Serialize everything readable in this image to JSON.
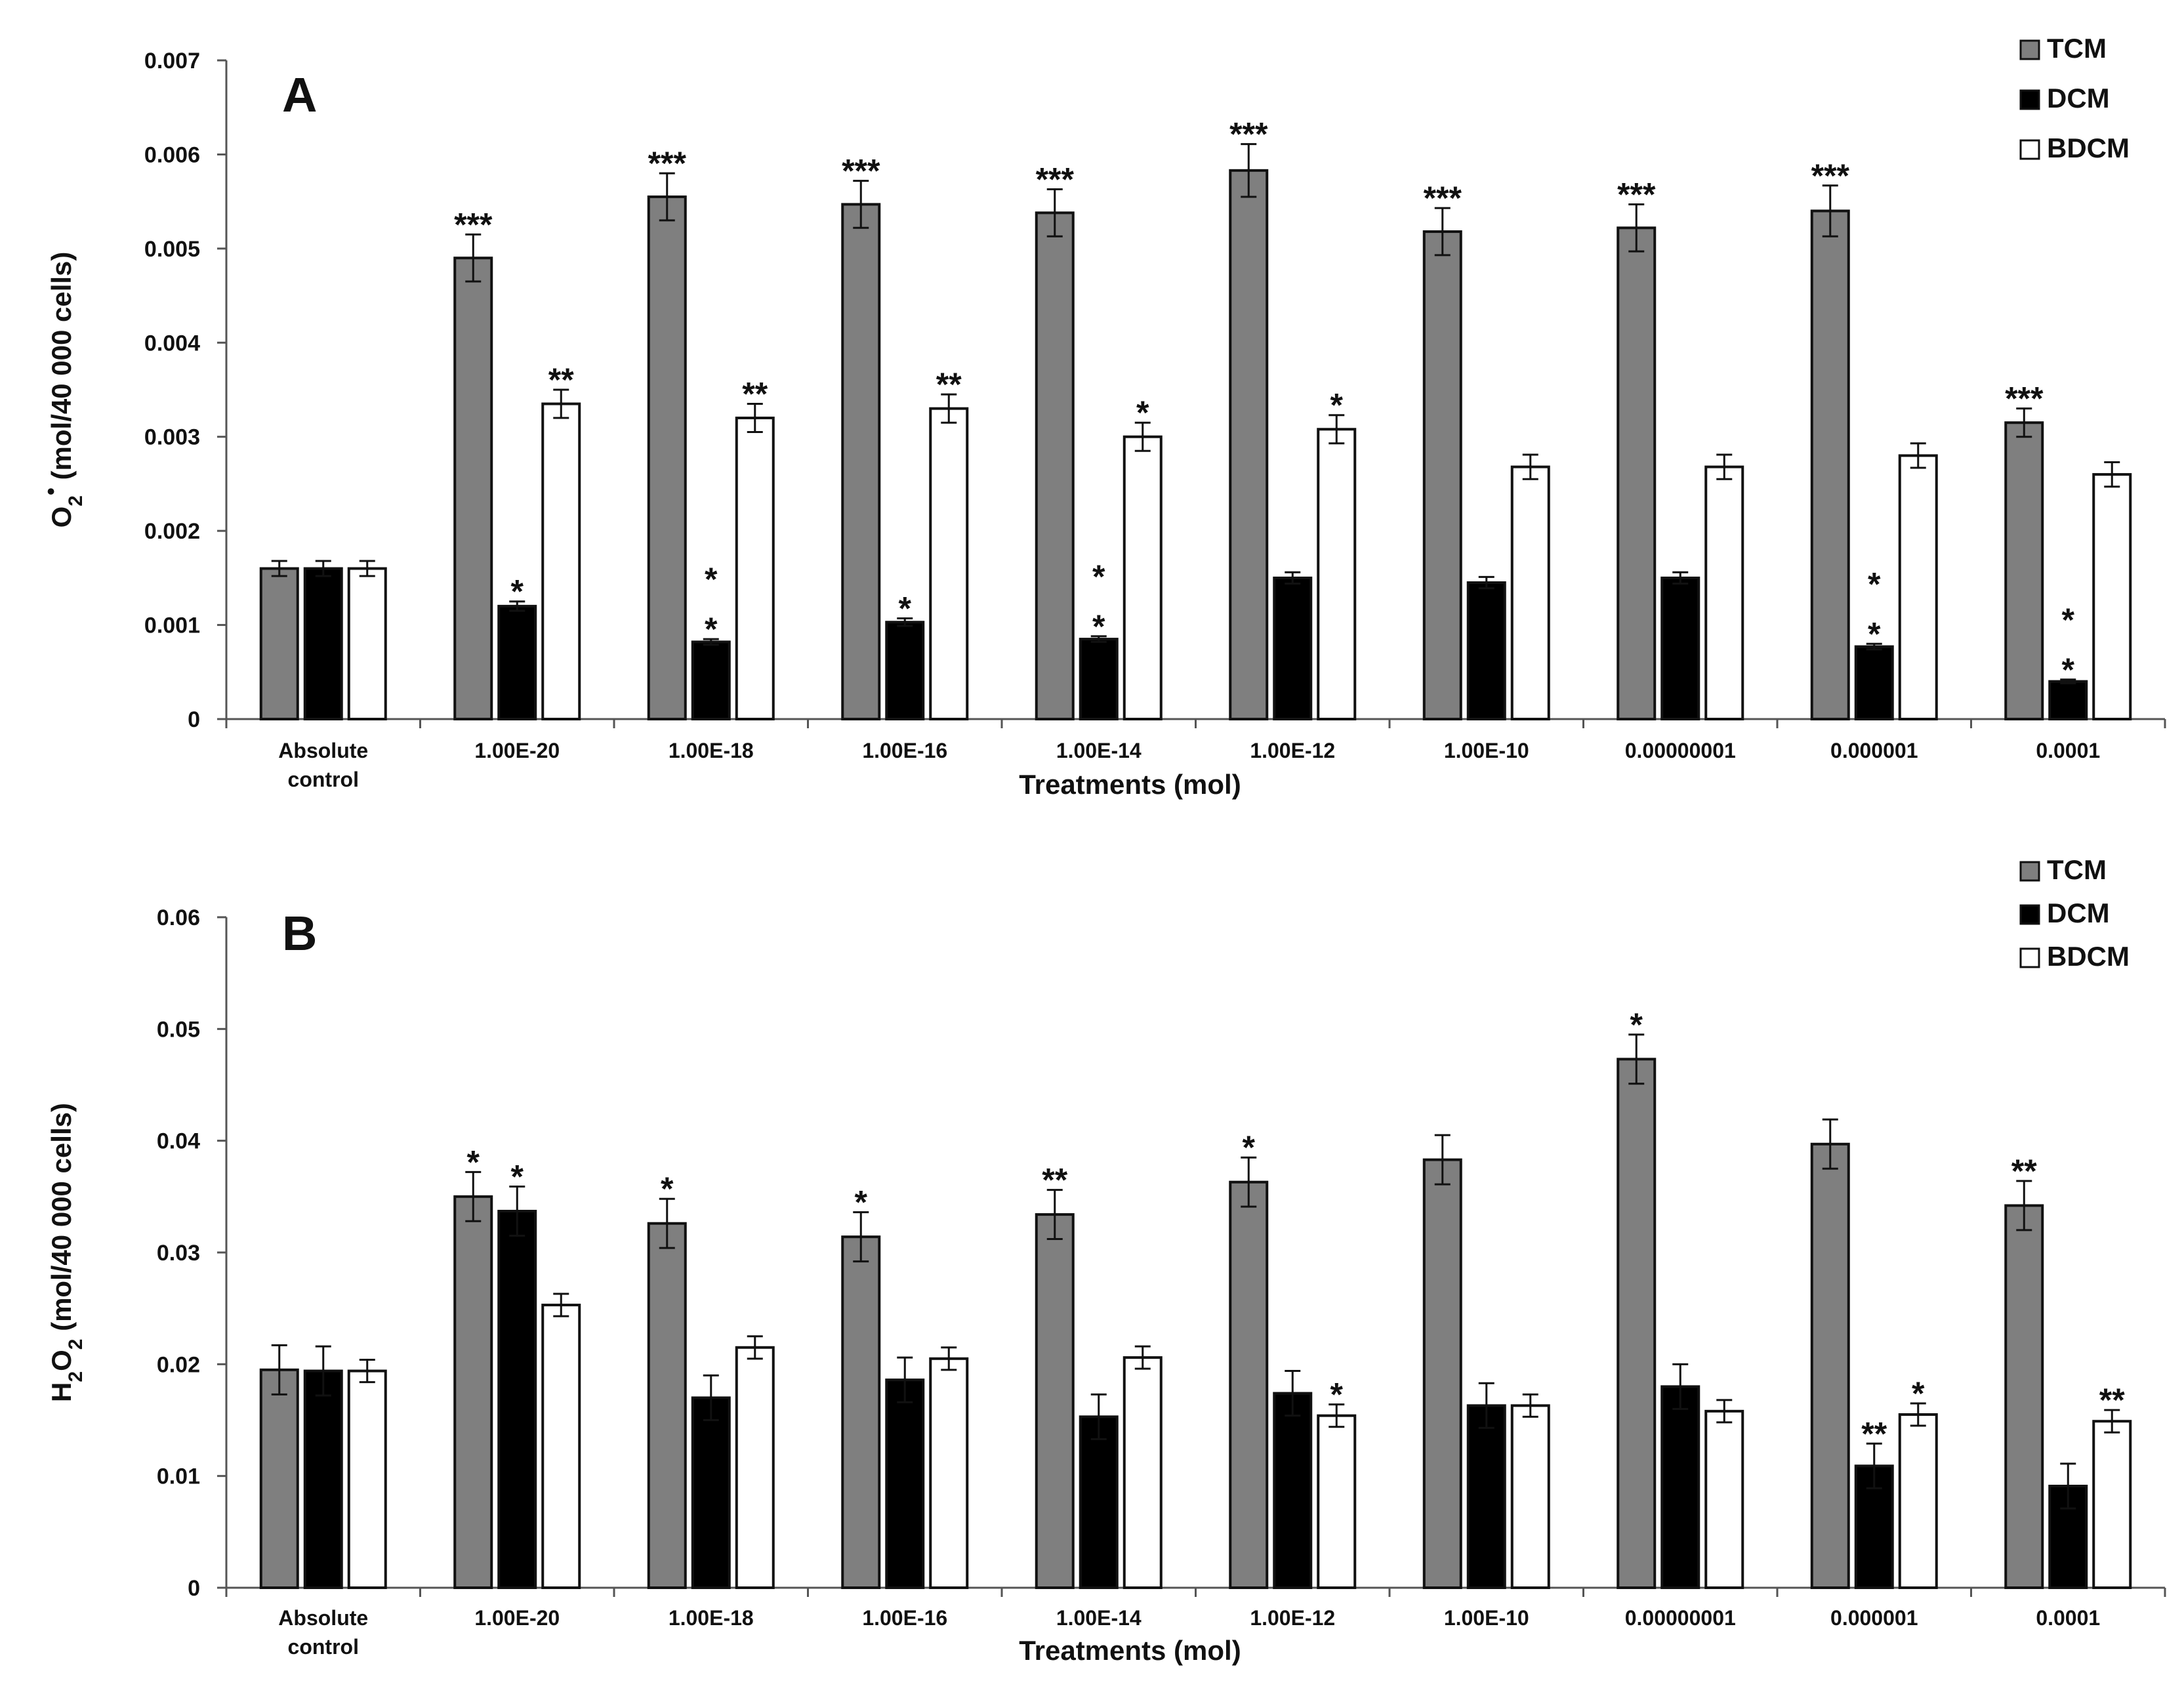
{
  "chart_data": [
    {
      "type": "bar",
      "panel": "A",
      "ylabel": "O2• (mol/40 000 cells)",
      "ylabel_parts": [
        "O",
        "2",
        "•",
        " (mol/40 000 cells)"
      ],
      "xlabel": "Treatments (mol)",
      "ylim": [
        0,
        0.007
      ],
      "yticks": [
        "0",
        "0.001",
        "0.002",
        "0.003",
        "0.004",
        "0.005",
        "0.006",
        "0.007"
      ],
      "categories": [
        [
          "Absolute",
          "control"
        ],
        [
          "1.00E-20"
        ],
        [
          "1.00E-18"
        ],
        [
          "1.00E-16"
        ],
        [
          "1.00E-14"
        ],
        [
          "1.00E-12"
        ],
        [
          "1.00E-10"
        ],
        [
          "0.00000001"
        ],
        [
          "0.000001"
        ],
        [
          "0.0001"
        ]
      ],
      "legend": [
        "TCM",
        "DCM",
        "BDCM"
      ],
      "series": [
        {
          "name": "TCM",
          "color": "#7f7f7f",
          "values": [
            0.0016,
            0.0049,
            0.00555,
            0.00547,
            0.00538,
            0.00583,
            0.00518,
            0.00522,
            0.0054,
            0.00315
          ],
          "errors": [
            8e-05,
            0.00025,
            0.00025,
            0.00025,
            0.00025,
            0.00028,
            0.00025,
            0.00025,
            0.00027,
            0.00015
          ],
          "sig": [
            "",
            "***",
            "***",
            "***",
            "***",
            "***",
            "***",
            "***",
            "***",
            "***"
          ]
        },
        {
          "name": "DCM",
          "color": "#000000",
          "values": [
            0.0016,
            0.0012,
            0.00082,
            0.00103,
            0.00085,
            0.0015,
            0.00145,
            0.0015,
            0.00077,
            0.0004
          ],
          "errors": [
            8e-05,
            5e-05,
            3e-05,
            4e-05,
            3e-05,
            6e-05,
            6e-05,
            6e-05,
            3e-05,
            2e-05
          ],
          "sig": [
            "",
            "*",
            "*\n*",
            "*",
            "*\n*",
            "",
            "",
            "",
            "*\n*",
            "*\n*"
          ]
        },
        {
          "name": "BDCM",
          "color": "#ffffff",
          "values": [
            0.0016,
            0.00335,
            0.0032,
            0.0033,
            0.003,
            0.00308,
            0.00268,
            0.00268,
            0.0028,
            0.0026
          ],
          "errors": [
            8e-05,
            0.00015,
            0.00015,
            0.00015,
            0.00015,
            0.00015,
            0.00013,
            0.00013,
            0.00013,
            0.00013
          ],
          "sig": [
            "",
            "**",
            "**",
            "**",
            "*",
            "*",
            "",
            "",
            "",
            ""
          ]
        }
      ]
    },
    {
      "type": "bar",
      "panel": "B",
      "ylabel": "H2O2 (mol/40 000 cells)",
      "ylabel_parts": [
        "H",
        "2",
        "O",
        "2",
        "  (mol/40 000 cells)"
      ],
      "xlabel": "Treatments (mol)",
      "ylim": [
        0,
        0.06
      ],
      "yticks": [
        "0",
        "0.01",
        "0.02",
        "0.03",
        "0.04",
        "0.05",
        "0.06"
      ],
      "categories": [
        [
          "Absolute",
          "control"
        ],
        [
          "1.00E-20"
        ],
        [
          "1.00E-18"
        ],
        [
          "1.00E-16"
        ],
        [
          "1.00E-14"
        ],
        [
          "1.00E-12"
        ],
        [
          "1.00E-10"
        ],
        [
          "0.00000001"
        ],
        [
          "0.000001"
        ],
        [
          "0.0001"
        ]
      ],
      "legend": [
        "TCM",
        "DCM",
        "BDCM"
      ],
      "series": [
        {
          "name": "TCM",
          "color": "#7f7f7f",
          "values": [
            0.0195,
            0.035,
            0.0326,
            0.0314,
            0.0334,
            0.0363,
            0.0383,
            0.0473,
            0.0397,
            0.0342
          ],
          "errors": [
            0.0022,
            0.0022,
            0.0022,
            0.0022,
            0.0022,
            0.0022,
            0.0022,
            0.0022,
            0.0022,
            0.0022
          ],
          "sig": [
            "",
            "*",
            "*",
            "*",
            "**",
            "*",
            "",
            "*",
            "",
            "**"
          ]
        },
        {
          "name": "DCM",
          "color": "#000000",
          "values": [
            0.0194,
            0.0337,
            0.017,
            0.0186,
            0.0153,
            0.0174,
            0.0163,
            0.018,
            0.0109,
            0.0091
          ],
          "errors": [
            0.0022,
            0.0022,
            0.002,
            0.002,
            0.002,
            0.002,
            0.002,
            0.002,
            0.002,
            0.002
          ],
          "sig": [
            "",
            "*",
            "",
            "",
            "",
            "",
            "",
            "",
            "**",
            ""
          ]
        },
        {
          "name": "BDCM",
          "color": "#ffffff",
          "values": [
            0.0194,
            0.0253,
            0.0215,
            0.0205,
            0.0206,
            0.0154,
            0.0163,
            0.0158,
            0.0155,
            0.0149
          ],
          "errors": [
            0.001,
            0.001,
            0.001,
            0.001,
            0.001,
            0.001,
            0.001,
            0.001,
            0.001,
            0.001
          ],
          "sig": [
            "",
            "",
            "",
            "",
            "",
            "*",
            "",
            "",
            "*",
            "**"
          ]
        }
      ]
    }
  ]
}
